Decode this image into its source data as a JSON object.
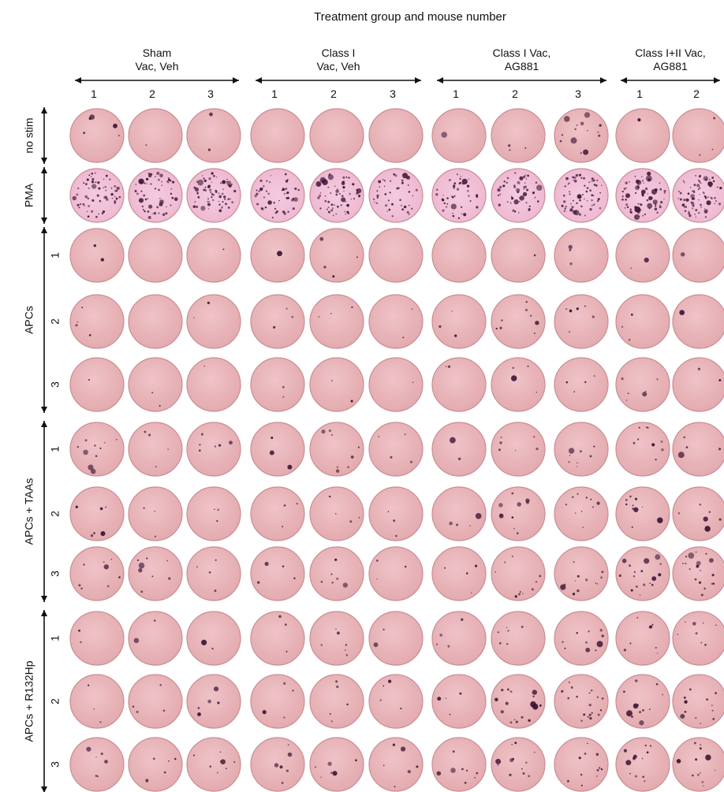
{
  "figure": {
    "title": "Treatment group and mouse number",
    "groups": [
      {
        "label_lines": [
          "Sham",
          "Vac, Veh"
        ],
        "mice": [
          "1",
          "2",
          "3"
        ]
      },
      {
        "label_lines": [
          "Class I",
          "Vac, Veh"
        ],
        "mice": [
          "1",
          "2",
          "3"
        ]
      },
      {
        "label_lines": [
          "Class I Vac,",
          "AG881"
        ],
        "mice": [
          "1",
          "2",
          "3"
        ]
      },
      {
        "label_lines": [
          "Class I+II Vac,",
          "AG881"
        ],
        "mice": [
          "1",
          "2"
        ]
      }
    ],
    "row_groups": [
      {
        "label": "no stim",
        "replicates": []
      },
      {
        "label": "PMA",
        "replicates": []
      },
      {
        "label": "APCs",
        "replicates": [
          "1",
          "2",
          "3"
        ]
      },
      {
        "label": "APCs + TAAs",
        "replicates": [
          "1",
          "2",
          "3"
        ]
      },
      {
        "label": "APCs + R132Hp",
        "replicates": [
          "1",
          "2",
          "3"
        ]
      }
    ],
    "colors": {
      "well": "#e2a9ad",
      "well_light": "#efc3c8",
      "well_rim": "#c98e93",
      "spot": "#3d1536",
      "pma_well": "#edb6cf"
    },
    "wells": [
      {
        "row": "no stim",
        "spots": [
          6,
          1,
          2,
          0,
          0,
          0,
          1,
          3,
          14,
          1,
          3
        ]
      },
      {
        "row": "PMA",
        "spots": [
          60,
          55,
          65,
          45,
          60,
          40,
          40,
          50,
          60,
          70,
          75
        ]
      },
      {
        "row": "APCs 1",
        "spots": [
          2,
          0,
          1,
          1,
          4,
          0,
          0,
          1,
          3,
          2,
          1
        ]
      },
      {
        "row": "APCs 2",
        "spots": [
          4,
          0,
          2,
          3,
          3,
          2,
          3,
          8,
          6,
          3,
          1
        ]
      },
      {
        "row": "APCs 3",
        "spots": [
          1,
          2,
          1,
          2,
          2,
          1,
          2,
          4,
          4,
          6,
          2
        ]
      },
      {
        "row": "APCs + TAAs 1",
        "spots": [
          10,
          4,
          6,
          3,
          8,
          4,
          2,
          6,
          8,
          9,
          4
        ]
      },
      {
        "row": "APCs + TAAs 2",
        "spots": [
          6,
          3,
          3,
          3,
          4,
          3,
          4,
          10,
          10,
          10,
          6
        ]
      },
      {
        "row": "APCs + TAAs 3",
        "spots": [
          8,
          8,
          4,
          4,
          6,
          3,
          4,
          10,
          12,
          18,
          18
        ]
      },
      {
        "row": "APCs + R132Hp 1",
        "spots": [
          2,
          2,
          2,
          3,
          6,
          2,
          4,
          6,
          10,
          8,
          8
        ]
      },
      {
        "row": "APCs + R132Hp 2",
        "spots": [
          3,
          4,
          5,
          4,
          5,
          4,
          4,
          16,
          18,
          12,
          12
        ]
      },
      {
        "row": "APCs + R132Hp 3",
        "spots": [
          6,
          6,
          8,
          6,
          6,
          6,
          8,
          12,
          12,
          12,
          12
        ]
      }
    ]
  }
}
